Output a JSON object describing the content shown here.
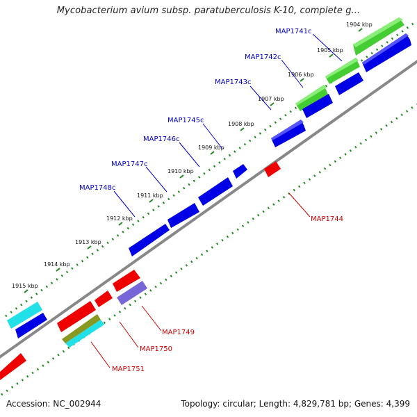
{
  "title": "Mycobacterium avium subsp. paratuberculosis K-10, complete g...",
  "footer": {
    "accession": "Accession: NC_002944",
    "genome_info": "Topology: circular; Length: 4,829,781 bp; Genes: 4,399"
  },
  "colors": {
    "forward_gene": "#0000e6",
    "reverse_gene": "#ee0000",
    "green_gene": "#44cc33",
    "cyan_gene": "#22e0e8",
    "purple_gene": "#7766d8",
    "olive_gene": "#889922",
    "backbone": "#888888",
    "tick": "#228822",
    "forward_label": "#0000cc",
    "reverse_label": "#cc0000"
  },
  "ruler": {
    "ticks": [
      "1904 kbp",
      "1905 kbp",
      "1906 kbp",
      "1907 kbp",
      "1908 kbp",
      "1909 kbp",
      "1910 kbp",
      "1911 kbp",
      "1912 kbp",
      "1913 kbp",
      "1914 kbp",
      "1915 kbp"
    ]
  },
  "forward_labels": [
    "MAP1741c",
    "MAP1742c",
    "MAP1743c",
    "MAP1745c",
    "MAP1746c",
    "MAP1747c",
    "MAP1748c"
  ],
  "reverse_labels": [
    "MAP1744",
    "MAP1749",
    "MAP1750",
    "MAP1751"
  ]
}
